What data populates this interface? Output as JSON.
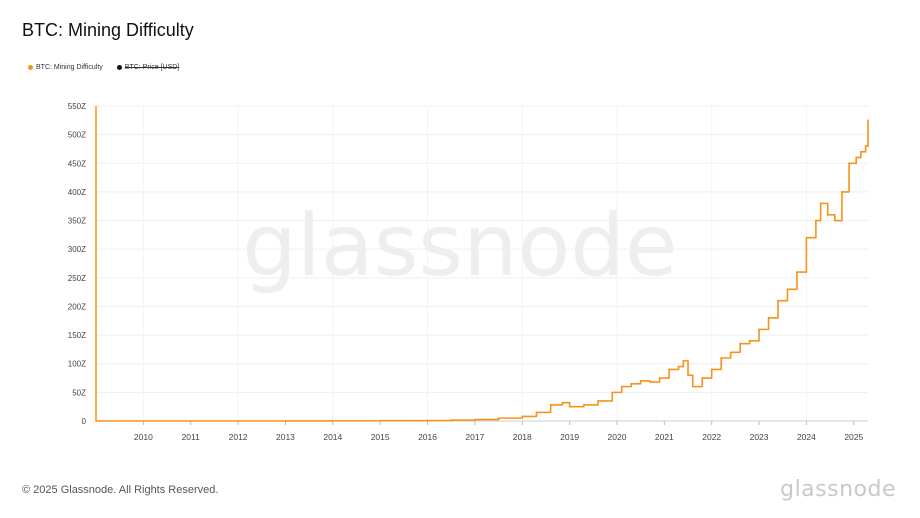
{
  "page": {
    "title": "BTC: Mining Difficulty",
    "footer": "© 2025 Glassnode. All Rights Reserved.",
    "logo": "glassnode",
    "watermark": "glassnode"
  },
  "legend": [
    {
      "label": "BTC: Mining Difficulty",
      "color": "#f7931a",
      "enabled": true
    },
    {
      "label": "BTC: Price [USD]",
      "color": "#111111",
      "enabled": false
    }
  ],
  "chart_data": {
    "type": "line",
    "title": "BTC: Mining Difficulty",
    "xlabel": "",
    "ylabel": "",
    "xlim": [
      2009.0,
      2025.3
    ],
    "ylim": [
      0,
      550
    ],
    "y_unit": "Z",
    "y_ticks": [
      0,
      50,
      100,
      150,
      200,
      250,
      300,
      350,
      400,
      450,
      500,
      550
    ],
    "y_tick_labels": [
      "0",
      "50Z",
      "100Z",
      "150Z",
      "200Z",
      "250Z",
      "300Z",
      "350Z",
      "400Z",
      "450Z",
      "500Z",
      "550Z"
    ],
    "x_ticks": [
      2010,
      2011,
      2012,
      2013,
      2014,
      2015,
      2016,
      2017,
      2018,
      2019,
      2020,
      2021,
      2022,
      2023,
      2024,
      2025
    ],
    "x_tick_labels": [
      "2010",
      "2011",
      "2012",
      "2013",
      "2014",
      "2015",
      "2016",
      "2017",
      "2018",
      "2019",
      "2020",
      "2021",
      "2022",
      "2023",
      "2024",
      "2025"
    ],
    "grid": true,
    "legend_position": "top-left",
    "series": [
      {
        "name": "BTC: Mining Difficulty",
        "color": "#f7931a",
        "x": [
          2009.0,
          2013.0,
          2014.0,
          2015.0,
          2016.0,
          2016.5,
          2017.0,
          2017.5,
          2018.0,
          2018.3,
          2018.6,
          2018.85,
          2019.0,
          2019.3,
          2019.6,
          2019.9,
          2020.1,
          2020.3,
          2020.5,
          2020.7,
          2020.9,
          2021.1,
          2021.3,
          2021.4,
          2021.5,
          2021.6,
          2021.8,
          2022.0,
          2022.2,
          2022.4,
          2022.6,
          2022.8,
          2023.0,
          2023.2,
          2023.4,
          2023.6,
          2023.8,
          2024.0,
          2024.2,
          2024.3,
          2024.45,
          2024.6,
          2024.75,
          2024.9,
          2025.05,
          2025.15,
          2025.25,
          2025.3
        ],
        "y": [
          0,
          0.1,
          0.2,
          0.5,
          0.8,
          1.5,
          2.5,
          5,
          8,
          15,
          28,
          32,
          25,
          28,
          35,
          50,
          60,
          65,
          70,
          68,
          75,
          90,
          95,
          105,
          80,
          60,
          75,
          90,
          110,
          120,
          135,
          140,
          160,
          180,
          210,
          230,
          260,
          320,
          350,
          380,
          360,
          350,
          400,
          450,
          460,
          470,
          480,
          525
        ]
      }
    ]
  }
}
